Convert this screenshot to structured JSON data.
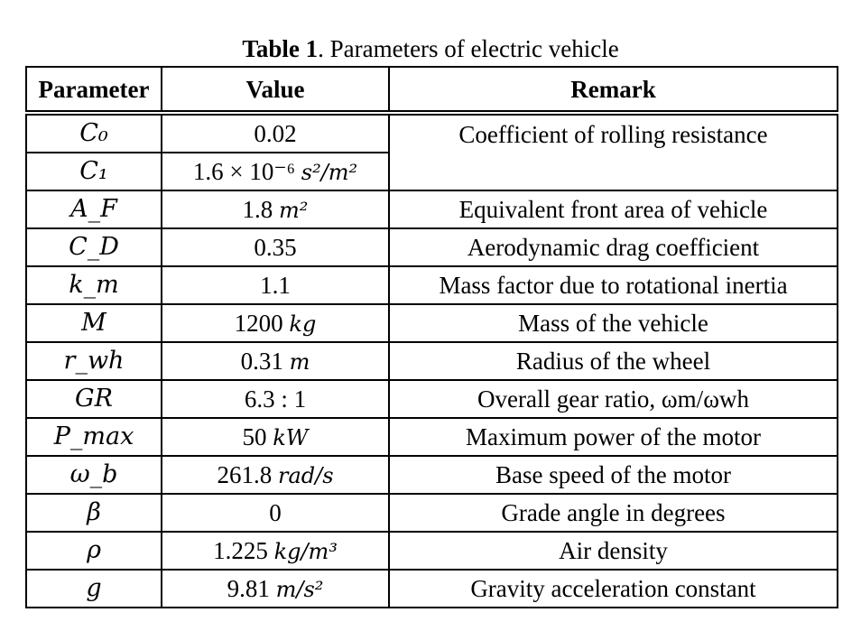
{
  "caption": {
    "label": "Table 1",
    "text": ". Parameters of electric vehicle"
  },
  "headers": {
    "parameter": "Parameter",
    "value": "Value",
    "remark": "Remark"
  },
  "rows": [
    {
      "param": "C₀",
      "value_num": "0.02",
      "value_unit": "",
      "remark": "Coefficient of rolling resistance"
    },
    {
      "param": "C₁",
      "value_num": "1.6 × 10⁻⁶",
      "value_unit": "s²/m²",
      "remark": ""
    },
    {
      "param": "A_F",
      "value_num": "1.8",
      "value_unit": "m²",
      "remark": "Equivalent front area of vehicle"
    },
    {
      "param": "C_D",
      "value_num": "0.35",
      "value_unit": "",
      "remark": "Aerodynamic drag coefficient"
    },
    {
      "param": "k_m",
      "value_num": "1.1",
      "value_unit": "",
      "remark": "Mass factor due to rotational inertia"
    },
    {
      "param": "M",
      "value_num": "1200",
      "value_unit": "kg",
      "remark": "Mass of the vehicle"
    },
    {
      "param": "r_wh",
      "value_num": "0.31",
      "value_unit": "m",
      "remark": "Radius of the wheel"
    },
    {
      "param": "GR",
      "value_num": "6.3 : 1",
      "value_unit": "",
      "remark": "Overall gear ratio, ωm/ωwh"
    },
    {
      "param": "P_max",
      "value_num": "50",
      "value_unit": "kW",
      "remark": "Maximum power of the motor"
    },
    {
      "param": "ω_b",
      "value_num": "261.8",
      "value_unit": "rad/s",
      "remark": "Base speed of the motor"
    },
    {
      "param": "β",
      "value_num": "0",
      "value_unit": "",
      "remark": "Grade angle in degrees"
    },
    {
      "param": "ρ",
      "value_num": "1.225",
      "value_unit": "kg/m³",
      "remark": "Air density"
    },
    {
      "param": "g",
      "value_num": "9.81",
      "value_unit": "m/s²",
      "remark": "Gravity acceleration constant"
    }
  ]
}
